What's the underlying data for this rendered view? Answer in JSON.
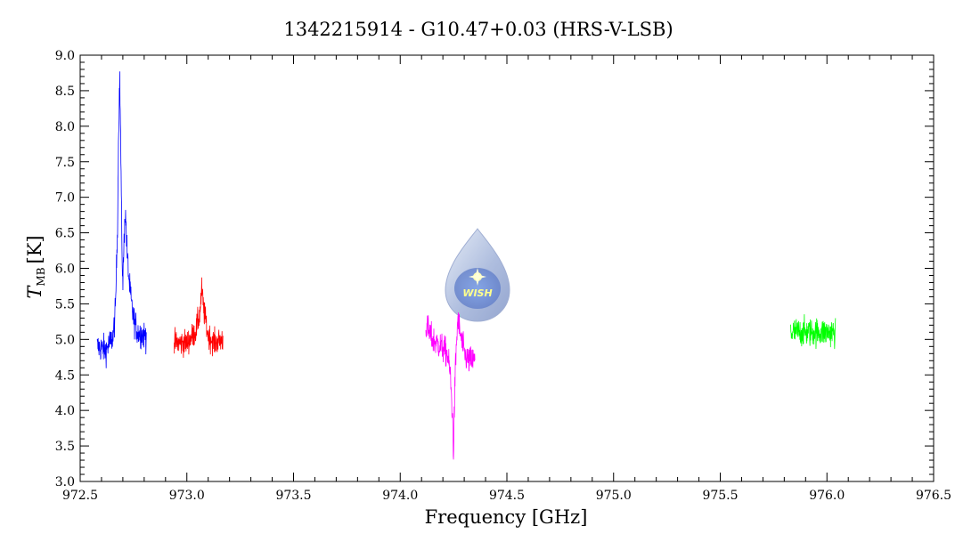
{
  "chart_data": {
    "type": "line",
    "title": "1342215914 - G10.47+0.03 (HRS-V-LSB)",
    "xlabel": "Frequency [GHz]",
    "ylabel_main": "T",
    "ylabel_sub": "MB",
    "ylabel_unit": "[K]",
    "xlim": [
      972.5,
      976.5
    ],
    "ylim": [
      3.0,
      9.0
    ],
    "xticks": [
      "972.5",
      "973.0",
      "973.5",
      "974.0",
      "974.5",
      "975.0",
      "975.5",
      "976.0",
      "976.5"
    ],
    "yticks": [
      "3.0",
      "3.5",
      "4.0",
      "4.5",
      "5.0",
      "5.5",
      "6.0",
      "6.5",
      "7.0",
      "7.5",
      "8.0",
      "8.5",
      "9.0"
    ],
    "grid": false,
    "series": [
      {
        "color": "#0000ff",
        "x_range": [
          972.58,
          972.81
        ],
        "noise": 0.2,
        "shape": [
          [
            972.58,
            4.9
          ],
          [
            972.62,
            4.85
          ],
          [
            972.64,
            4.95
          ],
          [
            972.655,
            5.05
          ],
          [
            972.665,
            5.4
          ],
          [
            972.675,
            6.6
          ],
          [
            972.68,
            7.9
          ],
          [
            972.685,
            8.7
          ],
          [
            972.69,
            7.8
          ],
          [
            972.695,
            6.4
          ],
          [
            972.7,
            5.8
          ],
          [
            972.71,
            6.8
          ],
          [
            972.715,
            6.6
          ],
          [
            972.72,
            6.2
          ],
          [
            972.73,
            5.8
          ],
          [
            972.74,
            5.5
          ],
          [
            972.75,
            5.3
          ],
          [
            972.77,
            5.1
          ],
          [
            972.81,
            5.05
          ]
        ]
      },
      {
        "color": "#ff0000",
        "x_range": [
          972.94,
          973.17
        ],
        "noise": 0.18,
        "shape": [
          [
            972.94,
            4.95
          ],
          [
            973.0,
            4.95
          ],
          [
            973.04,
            5.1
          ],
          [
            973.06,
            5.35
          ],
          [
            973.07,
            5.7
          ],
          [
            973.08,
            5.4
          ],
          [
            973.1,
            5.05
          ],
          [
            973.13,
            4.95
          ],
          [
            973.17,
            5.0
          ]
        ]
      },
      {
        "color": "#ff00ff",
        "x_range": [
          974.12,
          974.35
        ],
        "noise": 0.2,
        "shape": [
          [
            974.12,
            5.2
          ],
          [
            974.15,
            5.0
          ],
          [
            974.19,
            4.9
          ],
          [
            974.22,
            4.8
          ],
          [
            974.235,
            4.5
          ],
          [
            974.245,
            3.9
          ],
          [
            974.25,
            3.4
          ],
          [
            974.255,
            4.2
          ],
          [
            974.26,
            4.7
          ],
          [
            974.27,
            5.3
          ],
          [
            974.28,
            5.1
          ],
          [
            974.3,
            4.8
          ],
          [
            974.32,
            4.7
          ],
          [
            974.35,
            4.7
          ]
        ]
      },
      {
        "color": "#00ff00",
        "x_range": [
          975.83,
          976.04
        ],
        "noise": 0.2,
        "shape": [
          [
            975.83,
            5.1
          ],
          [
            975.93,
            5.1
          ],
          [
            976.04,
            5.1
          ]
        ]
      }
    ]
  },
  "logo": {
    "name": "wish-logo",
    "text": "WISH"
  }
}
